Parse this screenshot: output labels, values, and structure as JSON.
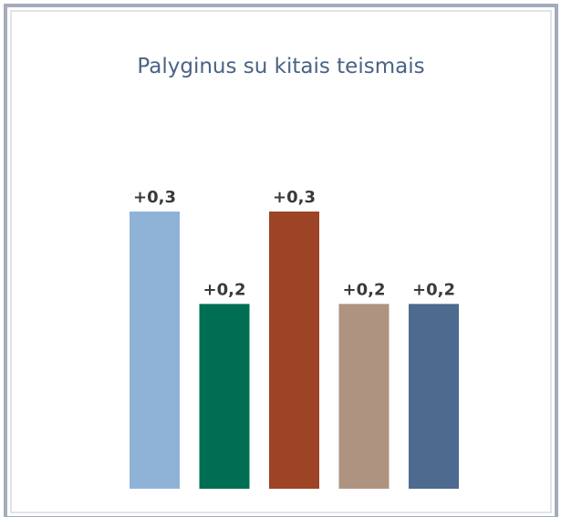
{
  "chart_data": {
    "type": "bar",
    "title": "Palyginus su kitais teismais",
    "categories": [
      null,
      null,
      null,
      null,
      null
    ],
    "values": [
      0.3,
      0.2,
      0.3,
      0.2,
      0.2
    ],
    "value_labels": [
      "+0,3",
      "+0,2",
      "+0,3",
      "+0,2",
      "+0,2"
    ],
    "colors": [
      "#8fb3d6",
      "#006e52",
      "#9c4425",
      "#ae9380",
      "#4d6a8f"
    ]
  }
}
